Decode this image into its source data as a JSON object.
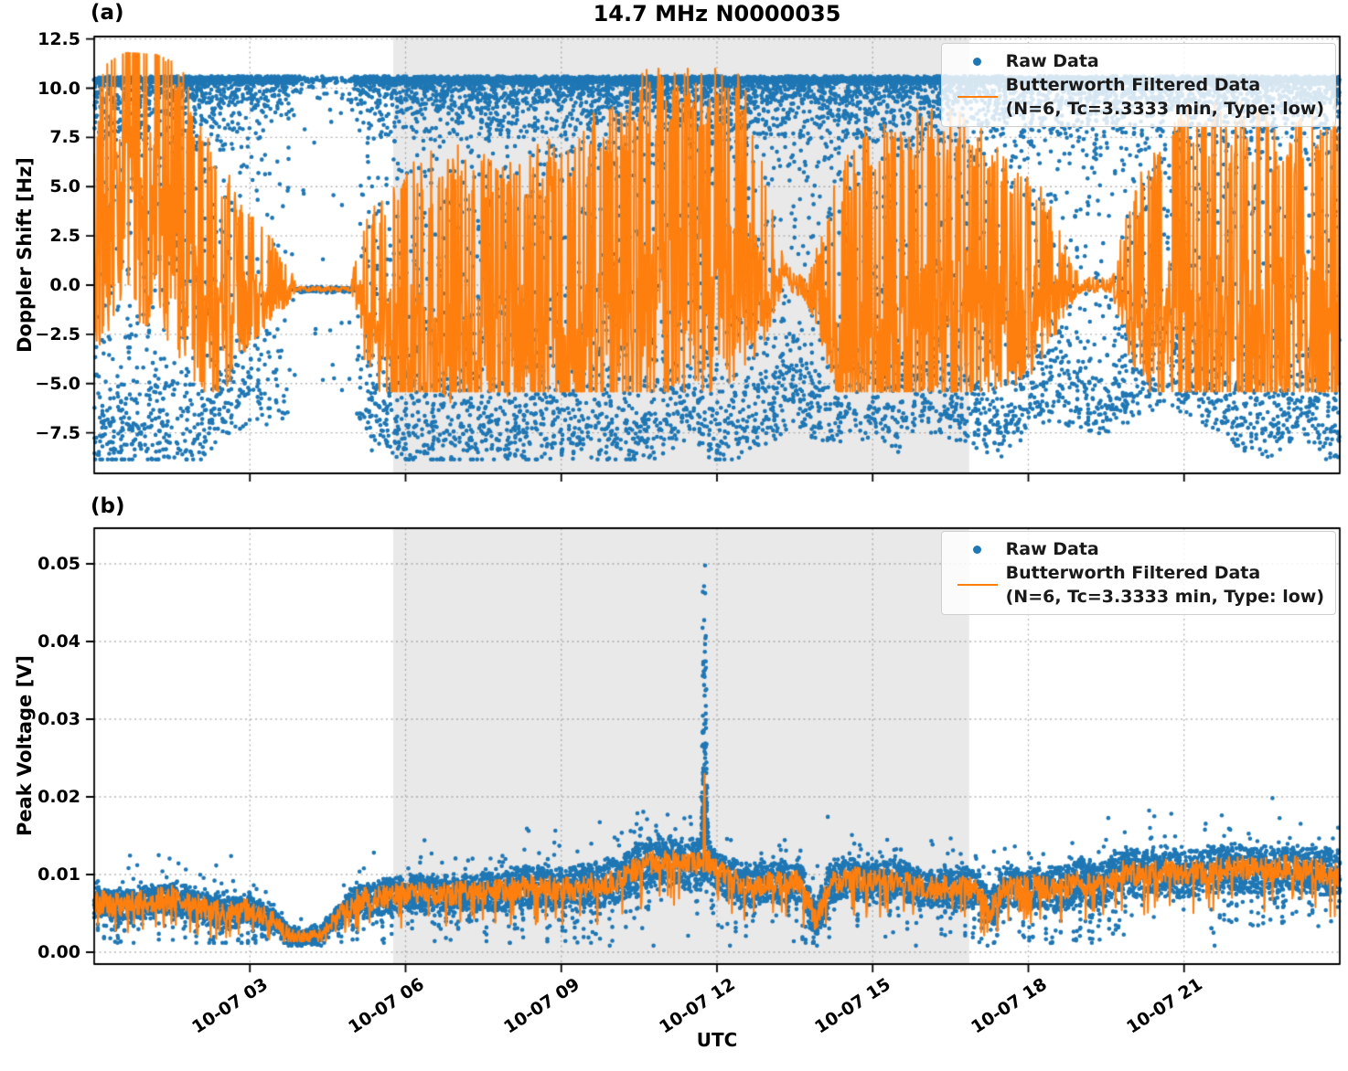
{
  "figure": {
    "title": "14.7 MHz N0000035",
    "xlabel": "UTC",
    "colors": {
      "raw": "#1f77b4",
      "filtered": "#ff7f0e",
      "shaded_span": "#e9e9e9",
      "grid": "#9a9a9a",
      "axes": "#000000"
    }
  },
  "legend": {
    "raw": "Raw Data",
    "filtered_line1": "Butterworth Filtered Data",
    "filtered_line2": "(N=6, Tc=3.3333 min, Type: low)"
  },
  "chart_data": [
    {
      "id": "doppler_panel",
      "panel_label": "(a)",
      "type": "scatter",
      "title": "14.7 MHz N0000035",
      "ylabel": "Doppler Shift [Hz]",
      "series": [
        {
          "name": "Raw Data",
          "marker": "dot",
          "color": "#1f77b4"
        },
        {
          "name": "Butterworth Filtered Data (N=6, Tc=3.3333 min, Type: low)",
          "marker": "line",
          "color": "#ff7f0e"
        }
      ],
      "x_start_utc": "10-07 00",
      "x_end_utc": "10-08 00",
      "xticks_hours": [
        3,
        6,
        9,
        12,
        15,
        18,
        21
      ],
      "xtick_labels": [
        "10-07 03",
        "10-07 06",
        "10-07 09",
        "10-07 12",
        "10-07 15",
        "10-07 18",
        "10-07 21"
      ],
      "yticks": [
        12.5,
        10.0,
        7.5,
        5.0,
        2.5,
        0.0,
        -2.5,
        -5.0,
        -7.5
      ],
      "ytick_labels": [
        "12.5",
        "10.0",
        "7.5",
        "5.0",
        "2.5",
        "0.0",
        "−2.5",
        "−5.0",
        "−7.5"
      ],
      "ylim": [
        -9.5,
        12.6
      ],
      "grid": true,
      "legend_loc": "upper right",
      "shaded_span_hours": [
        5.76,
        16.86
      ],
      "raw_scatter_model": {
        "top_band_hz": 10.4,
        "y_clip": [
          -8.85,
          10.6
        ],
        "bottom_envelope": [
          [
            0,
            -8.5
          ],
          [
            1,
            -8.3
          ],
          [
            2,
            -8.6
          ],
          [
            2.5,
            -7
          ],
          [
            3,
            -6.2
          ],
          [
            3.5,
            -6.5
          ],
          [
            4,
            -5.5
          ],
          [
            4.5,
            -5
          ],
          [
            5,
            -7
          ],
          [
            5.5,
            -8
          ],
          [
            6,
            -8.4
          ],
          [
            7,
            -8.2
          ],
          [
            8,
            -8.5
          ],
          [
            9,
            -8
          ],
          [
            10,
            -8.3
          ],
          [
            11,
            -8
          ],
          [
            11.5,
            -7
          ],
          [
            12,
            -8.6
          ],
          [
            12.5,
            -8
          ],
          [
            13,
            -7.5
          ],
          [
            13.5,
            -6.2
          ],
          [
            14,
            -7.5
          ],
          [
            15,
            -7
          ],
          [
            15.5,
            -7.8
          ],
          [
            16,
            -6.6
          ],
          [
            16.5,
            -7
          ],
          [
            17,
            -7.5
          ],
          [
            17.5,
            -8
          ],
          [
            18,
            -7
          ],
          [
            18.5,
            -6.2
          ],
          [
            19,
            -6.6
          ],
          [
            19.5,
            -7
          ],
          [
            20,
            -6
          ],
          [
            20.5,
            -5.6
          ],
          [
            21,
            -6
          ],
          [
            21.5,
            -6.5
          ],
          [
            22,
            -7.5
          ],
          [
            22.7,
            -8
          ],
          [
            23.3,
            -7
          ],
          [
            24,
            -8.8
          ]
        ],
        "density": [
          [
            0,
            1
          ],
          [
            2.4,
            1
          ],
          [
            2.7,
            0.8
          ],
          [
            3.3,
            0.6
          ],
          [
            3.8,
            0.35
          ],
          [
            5.0,
            0.35
          ],
          [
            5.3,
            0.95
          ],
          [
            6,
            1
          ],
          [
            24,
            1
          ]
        ],
        "quiet_interval_hours": [
          3.85,
          5.05
        ],
        "quiet_level_hz": -0.22
      },
      "filtered_model": {
        "base": [
          [
            0,
            1
          ],
          [
            0.3,
            3
          ],
          [
            0.6,
            5.5
          ],
          [
            0.9,
            4
          ],
          [
            1.2,
            5
          ],
          [
            1.5,
            2
          ],
          [
            1.8,
            0.5
          ],
          [
            2.1,
            -0.5
          ],
          [
            2.4,
            -1.5
          ],
          [
            2.7,
            -1
          ],
          [
            3,
            -0.5
          ],
          [
            3.4,
            -0.3
          ],
          [
            3.85,
            -0.2
          ],
          [
            5.0,
            -0.2
          ],
          [
            5.3,
            -1.5
          ],
          [
            6,
            -2.5
          ],
          [
            6.5,
            -3
          ],
          [
            7,
            -3.2
          ],
          [
            7.5,
            -2.8
          ],
          [
            8,
            -3
          ],
          [
            8.5,
            -2.5
          ],
          [
            9,
            -2.8
          ],
          [
            9.5,
            -2.2
          ],
          [
            10,
            -1.6
          ],
          [
            10.5,
            -1
          ],
          [
            11,
            -0.5
          ],
          [
            11.5,
            0
          ],
          [
            12,
            0.5
          ],
          [
            12.5,
            1
          ],
          [
            12.9,
            0.5
          ],
          [
            13.3,
            0.4
          ],
          [
            13.7,
            -0.5
          ],
          [
            14,
            -1
          ],
          [
            14.5,
            -2
          ],
          [
            15,
            -2.5
          ],
          [
            15.5,
            -2
          ],
          [
            16,
            -1.5
          ],
          [
            16.5,
            -1
          ],
          [
            17,
            -0.8
          ],
          [
            17.5,
            -0.6
          ],
          [
            18,
            -1
          ],
          [
            18.7,
            -0.3
          ],
          [
            19,
            -0.1
          ],
          [
            19.6,
            -0.1
          ],
          [
            20,
            -1
          ],
          [
            20.5,
            -1.5
          ],
          [
            21,
            -1.2
          ],
          [
            21.5,
            -1.3
          ],
          [
            22,
            -1.5
          ],
          [
            22.5,
            -1.1
          ],
          [
            23,
            -1.3
          ],
          [
            23.5,
            -1
          ],
          [
            24,
            -1.2
          ]
        ],
        "amplitude": [
          [
            0,
            5
          ],
          [
            0.5,
            6.5
          ],
          [
            0.9,
            7.5
          ],
          [
            1.4,
            6.5
          ],
          [
            1.9,
            6
          ],
          [
            2.4,
            5
          ],
          [
            2.8,
            3.5
          ],
          [
            3.3,
            2
          ],
          [
            3.7,
            1
          ],
          [
            3.9,
            0.15
          ],
          [
            4.95,
            0.15
          ],
          [
            5.2,
            3
          ],
          [
            5.7,
            5
          ],
          [
            6.2,
            6
          ],
          [
            7,
            6.5
          ],
          [
            8,
            6
          ],
          [
            9,
            6.5
          ],
          [
            10,
            7
          ],
          [
            10.8,
            7.5
          ],
          [
            11.6,
            7
          ],
          [
            12.4,
            6.5
          ],
          [
            12.9,
            4
          ],
          [
            13.3,
            0.5
          ],
          [
            13.75,
            0.5
          ],
          [
            14.1,
            3
          ],
          [
            14.5,
            6
          ],
          [
            15,
            7
          ],
          [
            15.6,
            7
          ],
          [
            16.2,
            6.5
          ],
          [
            17,
            6
          ],
          [
            17.6,
            5
          ],
          [
            18.2,
            4
          ],
          [
            18.8,
            1
          ],
          [
            19.05,
            0.3
          ],
          [
            19.6,
            0.3
          ],
          [
            19.9,
            3
          ],
          [
            20.3,
            5
          ],
          [
            21,
            6.5
          ],
          [
            21.7,
            7
          ],
          [
            22.4,
            6.5
          ],
          [
            23,
            6
          ],
          [
            23.5,
            6.5
          ],
          [
            24,
            6
          ]
        ],
        "cap": [
          [
            0,
            10.9
          ],
          [
            0.6,
            11.8
          ],
          [
            1.2,
            11.7
          ],
          [
            1.8,
            11.0
          ],
          [
            24,
            11.0
          ]
        ],
        "min_hz": -5.4
      }
    },
    {
      "id": "voltage_panel",
      "panel_label": "(b)",
      "type": "scatter",
      "ylabel": "Peak Voltage [V]",
      "xlabel": "UTC",
      "series": [
        {
          "name": "Raw Data",
          "marker": "dot",
          "color": "#1f77b4"
        },
        {
          "name": "Butterworth Filtered Data (N=6, Tc=3.3333 min, Type: low)",
          "marker": "line",
          "color": "#ff7f0e"
        }
      ],
      "xticks_hours": [
        3,
        6,
        9,
        12,
        15,
        18,
        21
      ],
      "xtick_labels": [
        "10-07 03",
        "10-07 06",
        "10-07 09",
        "10-07 12",
        "10-07 15",
        "10-07 18",
        "10-07 21"
      ],
      "yticks": [
        0.05,
        0.04,
        0.03,
        0.02,
        0.01,
        0.0
      ],
      "ytick_labels": [
        "0.05",
        "0.04",
        "0.03",
        "0.02",
        "0.01",
        "0.00"
      ],
      "ylim": [
        -0.0015,
        0.0546
      ],
      "grid": true,
      "legend_loc": "upper right",
      "shaded_span_hours": [
        5.76,
        16.86
      ],
      "raw_scatter_model": {
        "mean": [
          [
            0,
            0.0065
          ],
          [
            0.5,
            0.006
          ],
          [
            1,
            0.0065
          ],
          [
            1.5,
            0.007
          ],
          [
            2,
            0.006
          ],
          [
            2.5,
            0.005
          ],
          [
            3,
            0.0055
          ],
          [
            3.5,
            0.004
          ],
          [
            3.8,
            0.002
          ],
          [
            4.3,
            0.002
          ],
          [
            4.6,
            0.004
          ],
          [
            5,
            0.0065
          ],
          [
            5.5,
            0.007
          ],
          [
            6,
            0.0075
          ],
          [
            7,
            0.0075
          ],
          [
            8,
            0.008
          ],
          [
            8.5,
            0.0085
          ],
          [
            9,
            0.008
          ],
          [
            9.5,
            0.0085
          ],
          [
            10,
            0.009
          ],
          [
            10.5,
            0.011
          ],
          [
            11,
            0.012
          ],
          [
            11.4,
            0.011
          ],
          [
            11.8,
            0.012
          ],
          [
            12.2,
            0.0095
          ],
          [
            12.6,
            0.0085
          ],
          [
            13,
            0.009
          ],
          [
            13.6,
            0.009
          ],
          [
            13.9,
            0.004
          ],
          [
            14.2,
            0.009
          ],
          [
            14.6,
            0.0095
          ],
          [
            15,
            0.009
          ],
          [
            15.5,
            0.0095
          ],
          [
            16,
            0.008
          ],
          [
            16.5,
            0.0085
          ],
          [
            17,
            0.008
          ],
          [
            17.25,
            0.005
          ],
          [
            17.5,
            0.008
          ],
          [
            18,
            0.0085
          ],
          [
            18.5,
            0.008
          ],
          [
            19,
            0.009
          ],
          [
            19.4,
            0.0085
          ],
          [
            19.8,
            0.0105
          ],
          [
            20.2,
            0.01
          ],
          [
            20.6,
            0.0105
          ],
          [
            21,
            0.01
          ],
          [
            21.5,
            0.0105
          ],
          [
            22,
            0.011
          ],
          [
            22.5,
            0.0105
          ],
          [
            23,
            0.011
          ],
          [
            23.5,
            0.0105
          ],
          [
            24,
            0.01
          ]
        ],
        "halfwidth": [
          [
            0,
            0.0018
          ],
          [
            1,
            0.002
          ],
          [
            2,
            0.002
          ],
          [
            3,
            0.0018
          ],
          [
            3.8,
            0.001
          ],
          [
            4.6,
            0.001
          ],
          [
            5,
            0.002
          ],
          [
            6,
            0.0022
          ],
          [
            7,
            0.0022
          ],
          [
            8,
            0.0025
          ],
          [
            9,
            0.0025
          ],
          [
            10,
            0.0028
          ],
          [
            10.7,
            0.003
          ],
          [
            11.4,
            0.0028
          ],
          [
            12,
            0.0025
          ],
          [
            14,
            0.0025
          ],
          [
            16,
            0.0022
          ],
          [
            18,
            0.0025
          ],
          [
            19,
            0.0028
          ],
          [
            24,
            0.0028
          ]
        ],
        "min_v": 0.0012,
        "spike": {
          "center_hours": 11.757,
          "peak_v": 0.0515,
          "base_v": 0.015,
          "half_width_hours": 0.07
        }
      },
      "filtered_model": {
        "follows_mean": true,
        "noise_v": 0.0016,
        "spike_center_hours": 11.757,
        "spike_peak_v": 0.0235
      }
    }
  ]
}
